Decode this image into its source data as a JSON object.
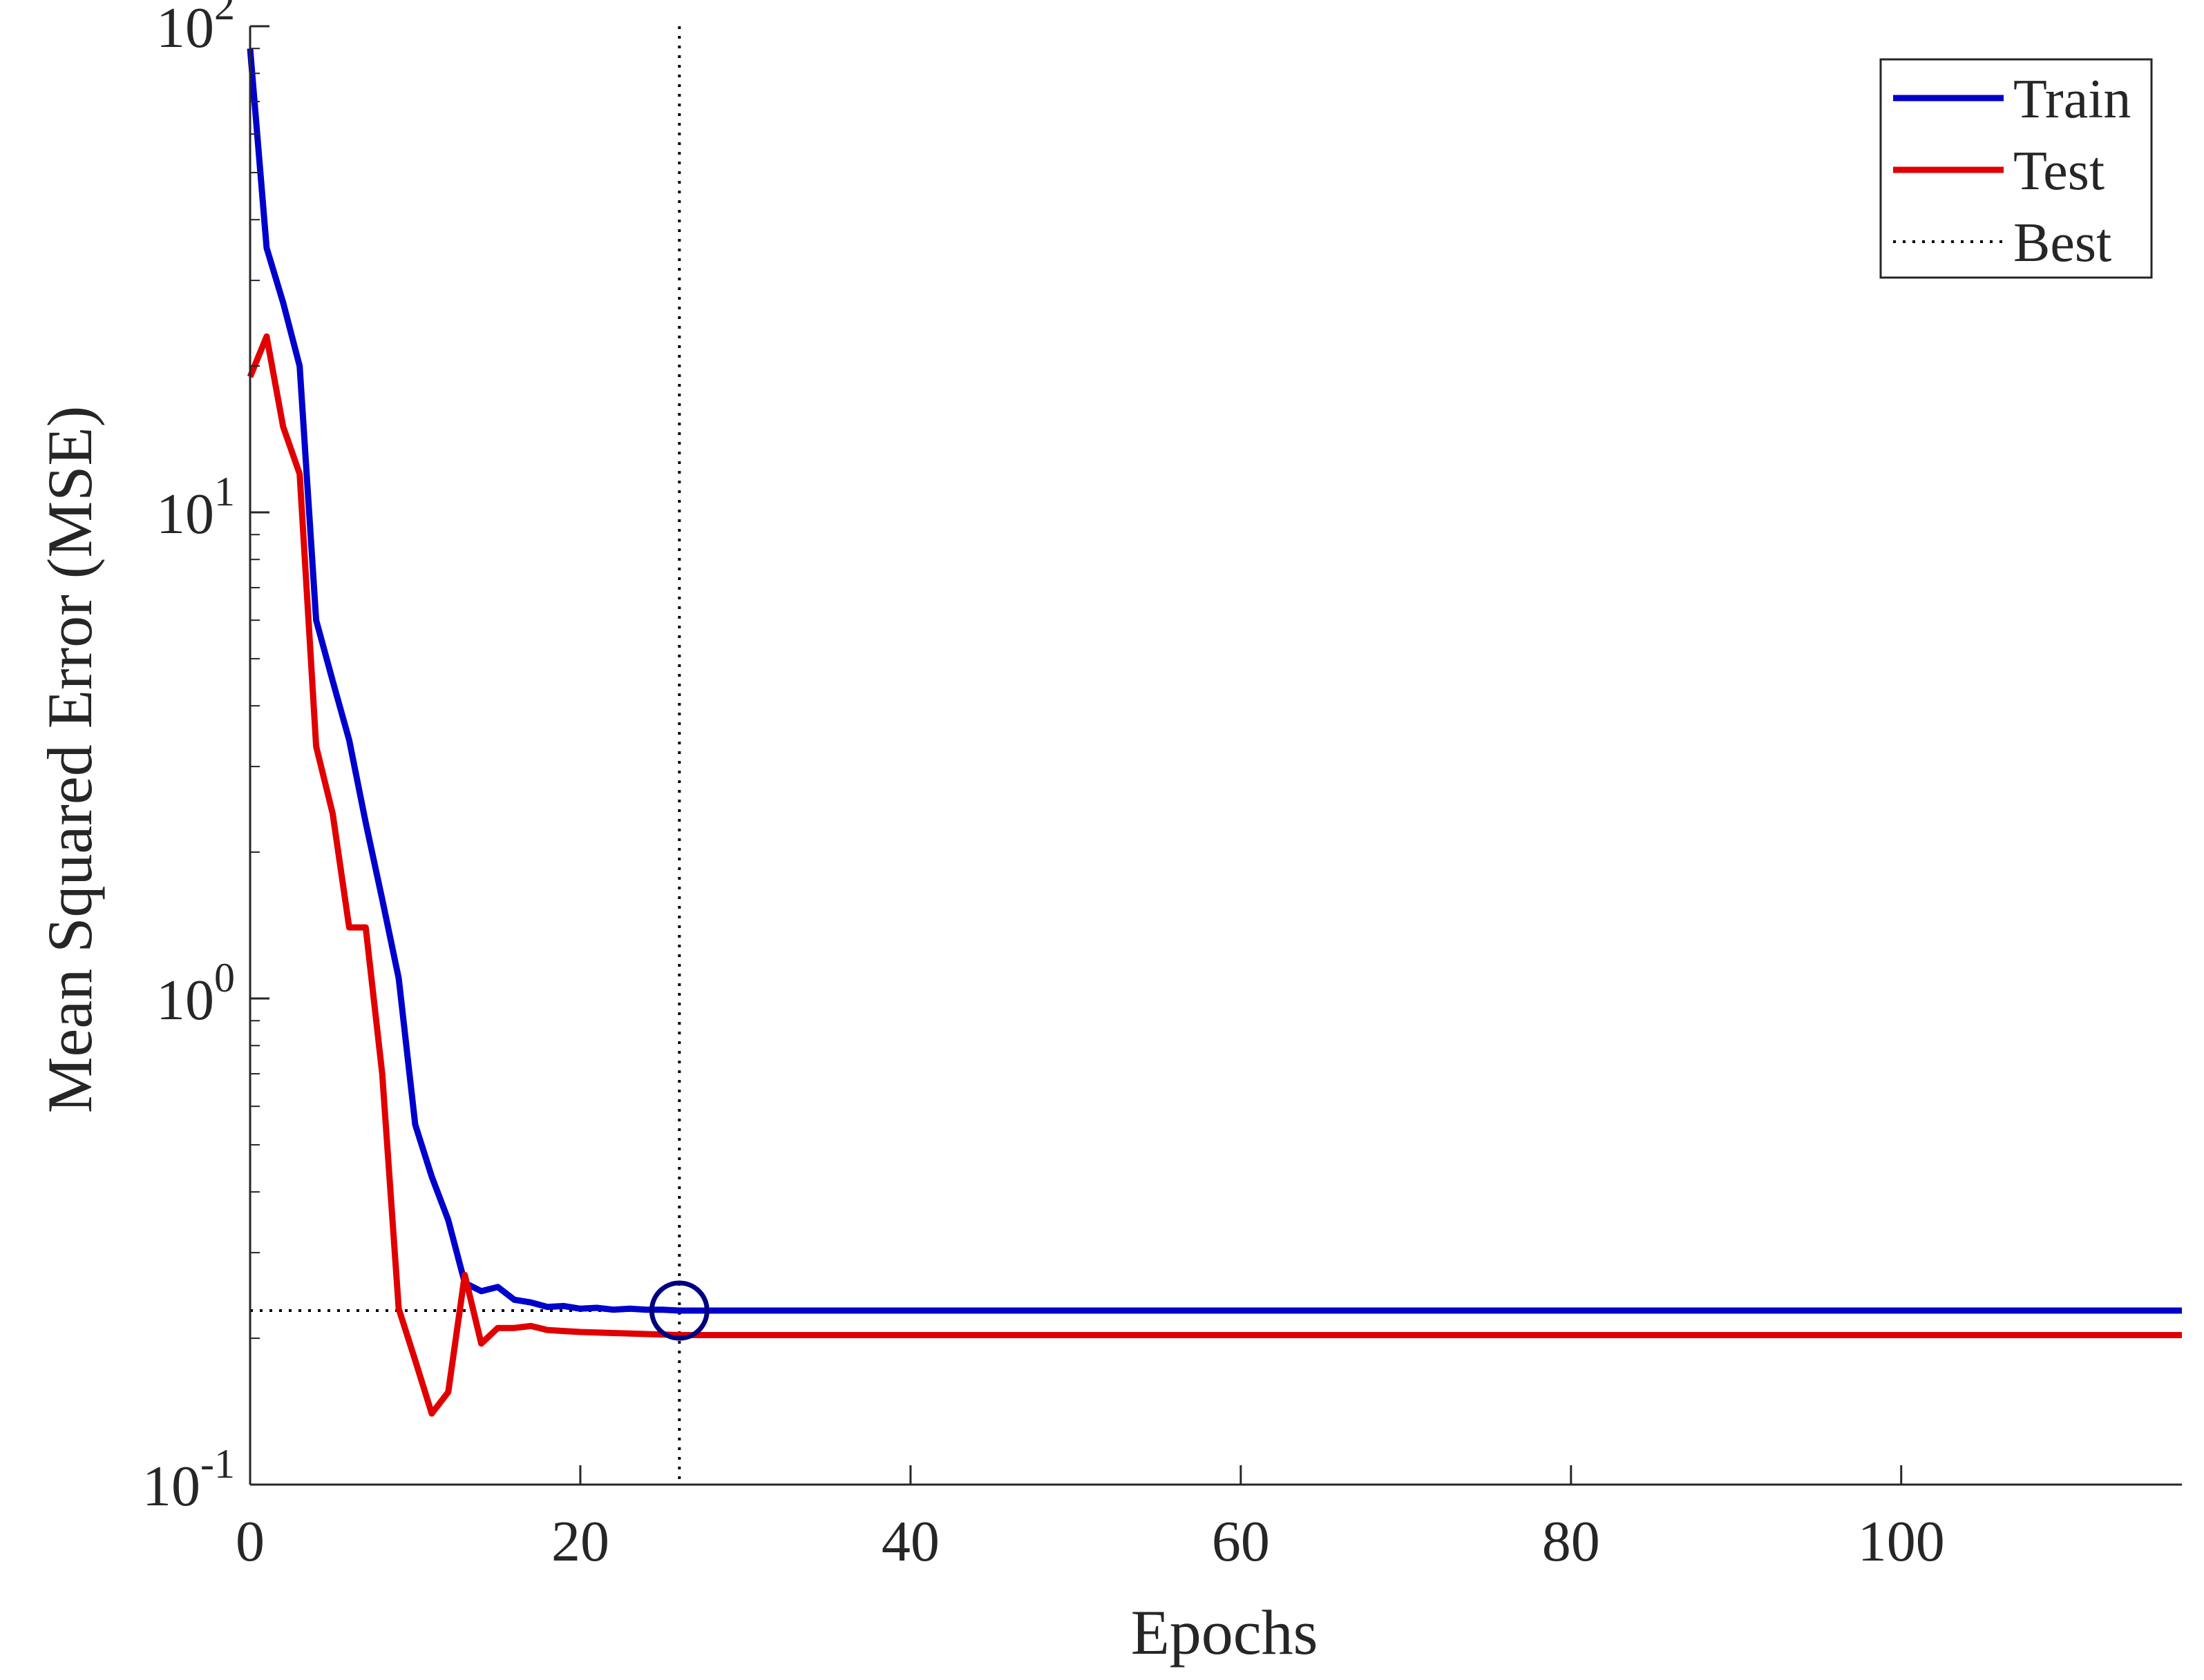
{
  "chart_data": {
    "type": "line",
    "xlabel": "Epochs",
    "ylabel": "Mean Squared Error  (MSE)",
    "xscale": "linear",
    "yscale": "log",
    "xlim": [
      0,
      117
    ],
    "ylim": [
      0.1,
      100
    ],
    "xticks": [
      0,
      20,
      40,
      60,
      80,
      100
    ],
    "xtick_labels": [
      "0",
      "20",
      "40",
      "60",
      "80",
      "100"
    ],
    "yticks": [
      0.1,
      1,
      10,
      100
    ],
    "ytick_labels": [
      {
        "base": "10",
        "exp": "-1"
      },
      {
        "base": "10",
        "exp": "0"
      },
      {
        "base": "10",
        "exp": "1"
      },
      {
        "base": "10",
        "exp": "2"
      }
    ],
    "grid": false,
    "legend_position": "top-right",
    "series": [
      {
        "name": "Train",
        "color": "#0000cc",
        "style": "solid",
        "x": [
          0,
          1,
          2,
          3,
          4,
          5,
          6,
          7,
          8,
          9,
          10,
          11,
          12,
          13,
          14,
          15,
          16,
          17,
          18,
          19,
          20,
          21,
          22,
          23,
          24,
          25,
          26,
          27,
          28,
          29,
          30,
          35,
          40,
          50,
          60,
          70,
          80,
          90,
          100,
          110,
          117
        ],
        "y": [
          90,
          35,
          27,
          20,
          6,
          4.5,
          3.4,
          2.3,
          1.6,
          1.1,
          0.55,
          0.43,
          0.35,
          0.26,
          0.25,
          0.255,
          0.24,
          0.237,
          0.232,
          0.233,
          0.23,
          0.231,
          0.229,
          0.23,
          0.229,
          0.229,
          0.228,
          0.228,
          0.228,
          0.228,
          0.228,
          0.228,
          0.228,
          0.228,
          0.228,
          0.228,
          0.228,
          0.228,
          0.228,
          0.228,
          0.228
        ]
      },
      {
        "name": "Test",
        "color": "#e00000",
        "style": "solid",
        "x": [
          0,
          1,
          2,
          3,
          4,
          5,
          6,
          7,
          8,
          9,
          10,
          11,
          12,
          13,
          14,
          15,
          16,
          17,
          18,
          19,
          20,
          22,
          24,
          26,
          28,
          30,
          40,
          50,
          60,
          70,
          80,
          90,
          100,
          110,
          117
        ],
        "y": [
          19,
          23,
          15,
          12,
          3.3,
          2.4,
          1.4,
          1.4,
          0.7,
          0.23,
          0.18,
          0.14,
          0.155,
          0.27,
          0.195,
          0.21,
          0.21,
          0.212,
          0.208,
          0.207,
          0.206,
          0.205,
          0.204,
          0.203,
          0.203,
          0.203,
          0.203,
          0.203,
          0.203,
          0.203,
          0.203,
          0.203,
          0.203,
          0.203,
          0.203
        ]
      },
      {
        "name": "Best",
        "color": "#000000",
        "style": "dotted",
        "x": 26,
        "y": 0.228
      }
    ],
    "best_marker": {
      "x": 26,
      "y": 0.228,
      "color": "#000080"
    }
  }
}
